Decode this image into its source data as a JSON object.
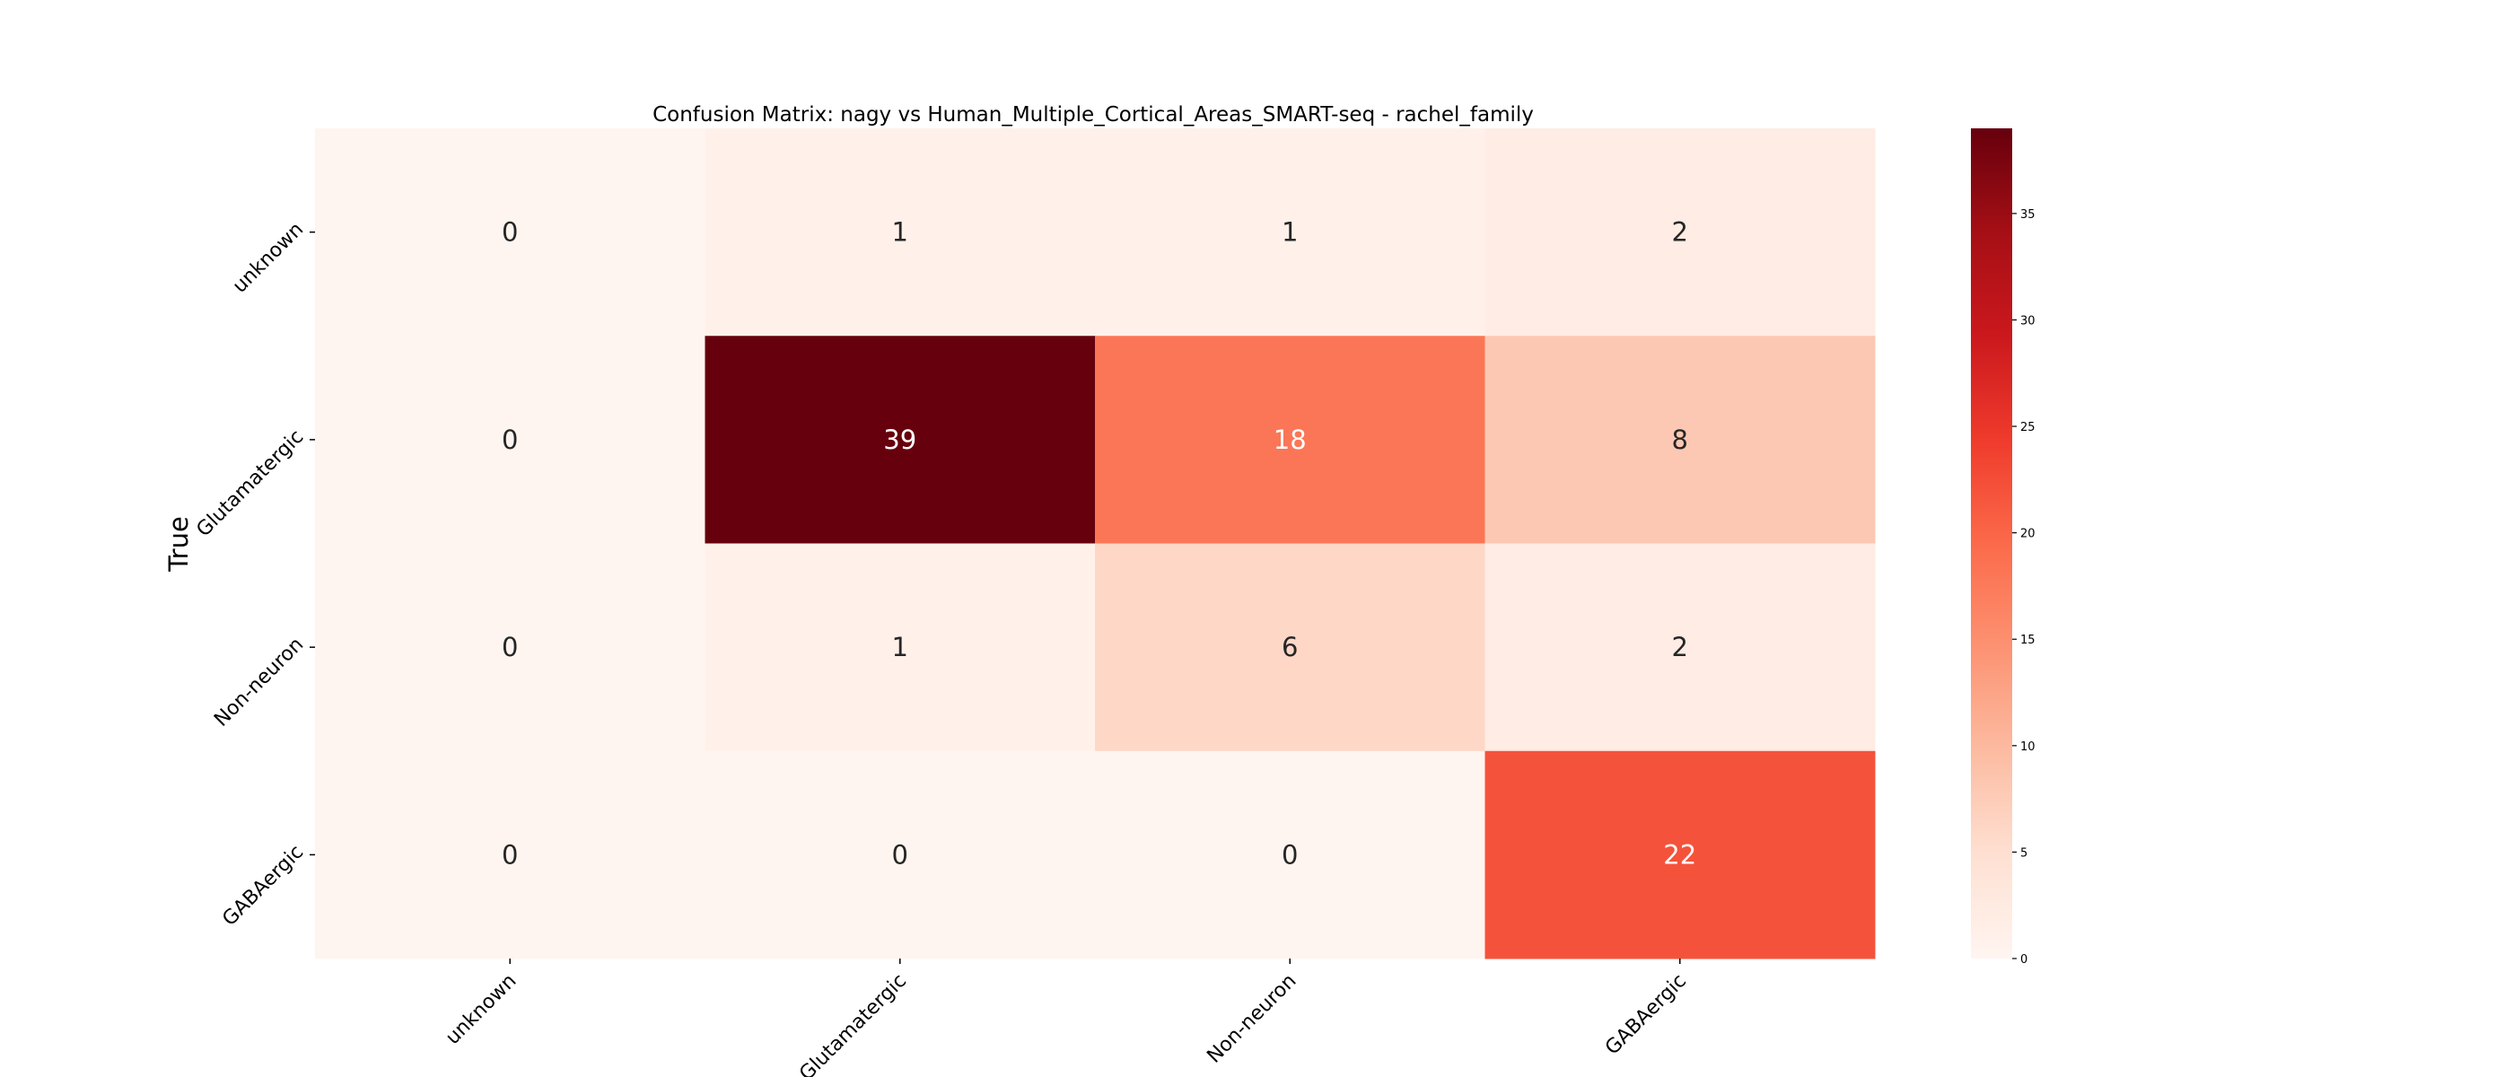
{
  "chart_data": {
    "type": "heatmap",
    "title": "Confusion Matrix: nagy vs Human_Multiple_Cortical_Areas_SMART-seq - rachel_family",
    "ylabel": "True",
    "xlabel": "",
    "x_categories": [
      "unknown",
      "Glutamatergic",
      "Non-neuron",
      "GABAergic"
    ],
    "y_categories": [
      "unknown",
      "Glutamatergic",
      "Non-neuron",
      "GABAergic"
    ],
    "values": [
      [
        0,
        1,
        1,
        2
      ],
      [
        0,
        39,
        18,
        8
      ],
      [
        0,
        1,
        6,
        2
      ],
      [
        0,
        0,
        0,
        22
      ]
    ],
    "colormap": "Reds",
    "vmin": 0,
    "vmax": 39,
    "colorbar_ticks": [
      0,
      5,
      10,
      15,
      20,
      25,
      30,
      35
    ],
    "grid": false,
    "colorbar_position": "right"
  }
}
